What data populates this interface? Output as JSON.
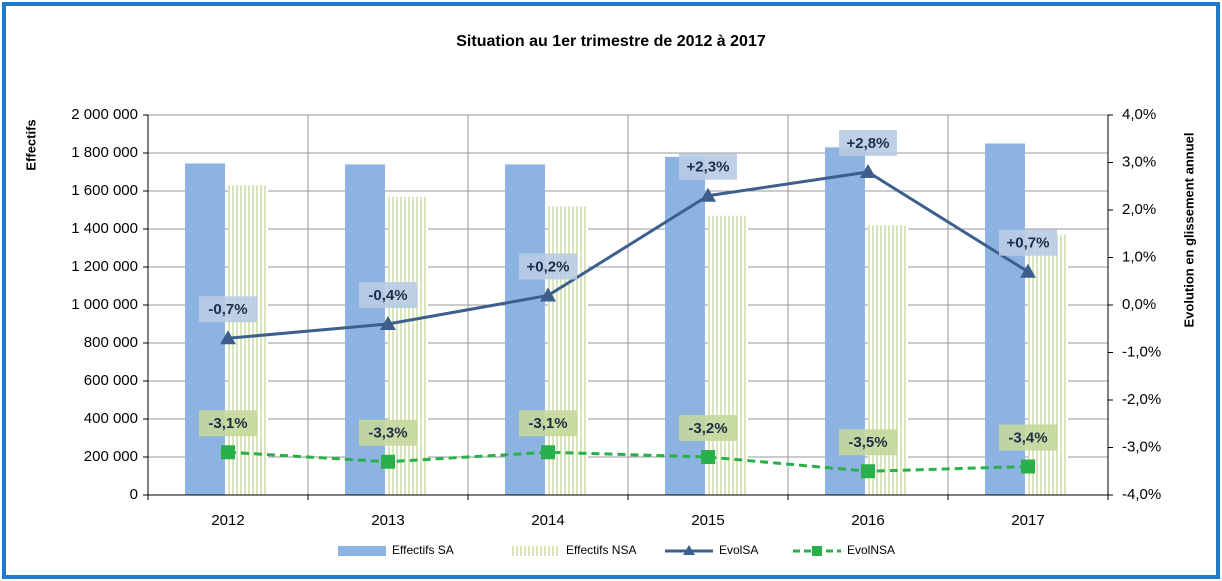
{
  "chart_data": {
    "type": "bar_line",
    "title": "Situation au 1er trimestre de 2012 à 2017",
    "y_label": "Effectifs",
    "y2_label": "Evolution en glissement annuel",
    "categories": [
      "2012",
      "2013",
      "2014",
      "2015",
      "2016",
      "2017"
    ],
    "grid": true,
    "legend": "bottom",
    "ylim": [
      0,
      2000000
    ],
    "yticks": [
      0,
      {
        "value": 200000,
        "label": "200 000"
      },
      {
        "value": 400000,
        "label": "400 000"
      },
      {
        "value": 600000,
        "label": "600 000"
      },
      {
        "value": 800000,
        "label": "800 000"
      },
      {
        "value": 1000000,
        "label": "1 000 000"
      },
      {
        "value": 1200000,
        "label": "1 200 000"
      },
      {
        "value": 1400000,
        "label": "1 400 000"
      },
      {
        "value": 1600000,
        "label": "1 600 000"
      },
      {
        "value": 1800000,
        "label": "1 800 000"
      },
      {
        "value": 2000000,
        "label": "2 000 000"
      }
    ],
    "y2lim": [
      -4,
      4
    ],
    "y2ticks": [
      {
        "value": -4,
        "label": "-4,0%"
      },
      {
        "value": -3,
        "label": "-3,0%"
      },
      {
        "value": -2,
        "label": "-2,0%"
      },
      {
        "value": -1,
        "label": "-1,0%"
      },
      {
        "value": 0,
        "label": "0,0%"
      },
      {
        "value": 1,
        "label": "1,0%"
      },
      {
        "value": 2,
        "label": "2,0%"
      },
      {
        "value": 3,
        "label": "3,0%"
      },
      {
        "value": 4,
        "label": "4,0%"
      }
    ],
    "series": [
      {
        "name": "Effectifs SA",
        "type": "bar",
        "color": "#8db3e2",
        "values": [
          1745000,
          1740000,
          1740000,
          1780000,
          1830000,
          1850000
        ]
      },
      {
        "name": "Effectifs NSA",
        "type": "bar",
        "color": "#d7e4bd",
        "hatch": true,
        "values": [
          1630000,
          1570000,
          1520000,
          1470000,
          1420000,
          1370000
        ]
      },
      {
        "name": "EvolSA",
        "type": "line",
        "axis": "y2",
        "color": "#3d5f8e",
        "marker": "triangle",
        "label_color": "#b8cce4",
        "values": [
          -0.7,
          -0.4,
          0.2,
          2.3,
          2.8,
          0.7
        ],
        "value_labels": [
          "-0,7%",
          "-0,4%",
          "+0,2%",
          "+2,3%",
          "+2,8%",
          "+0,7%"
        ]
      },
      {
        "name": "EvolNSA",
        "type": "line",
        "axis": "y2",
        "color": "#2ab04a",
        "marker": "square",
        "dashed": true,
        "label_color": "#c4d79b",
        "values": [
          -3.1,
          -3.3,
          -3.1,
          -3.2,
          -3.5,
          -3.4
        ],
        "value_labels": [
          "-3,1%",
          "-3,3%",
          "-3,1%",
          "-3,2%",
          "-3,5%",
          "-3,4%"
        ]
      }
    ]
  }
}
